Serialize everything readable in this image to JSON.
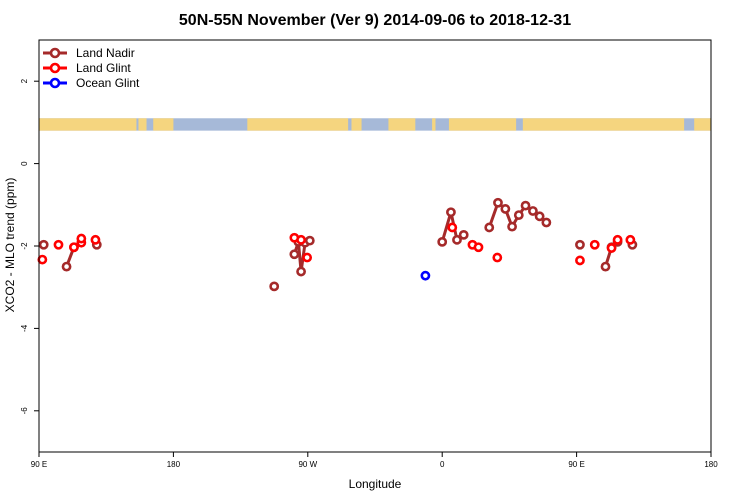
{
  "chart_data": {
    "type": "line",
    "title": "50N-55N November (Ver 9)   2014-09-06 to 2018-12-31",
    "xlabel": "Longitude",
    "ylabel": "XCO2 - MLO trend (ppm)",
    "x_axis_note": "longitude with Pacific-centered layout (90E → 180 → 90W → 0 → 90E → 180)",
    "xlim": [
      0,
      1
    ],
    "ylim": [
      -7,
      3
    ],
    "x_ticks": [
      {
        "pos": 0.0,
        "label": "90 E"
      },
      {
        "pos": 0.2,
        "label": "180"
      },
      {
        "pos": 0.4,
        "label": "90 W"
      },
      {
        "pos": 0.6,
        "label": "0"
      },
      {
        "pos": 0.8,
        "label": "90 E"
      },
      {
        "pos": 1.0,
        "label": "180"
      }
    ],
    "y_ticks": [
      {
        "value": 2,
        "label": "2"
      },
      {
        "value": 0,
        "label": "0"
      },
      {
        "value": -2,
        "label": "-2"
      },
      {
        "value": -4,
        "label": "-4"
      },
      {
        "value": -6,
        "label": "-6"
      }
    ],
    "grid": false,
    "legend_position": "top-left",
    "land_mask_band": {
      "y_top": 1.1,
      "y_bottom": 0.8,
      "land_color": "#f5d57f",
      "ocean_color": "#a6b9d8"
    },
    "series": [
      {
        "name": "Land Nadir",
        "color": "#a52a2a",
        "segments": [
          [
            [
              0.007,
              -1.97
            ]
          ],
          [
            [
              0.041,
              -2.5
            ],
            [
              0.052,
              -2.03
            ]
          ],
          [
            [
              0.086,
              -1.97
            ]
          ],
          [
            [
              0.35,
              -2.98
            ]
          ],
          [
            [
              0.38,
              -2.2
            ],
            [
              0.386,
              -1.9
            ],
            [
              0.39,
              -2.62
            ],
            [
              0.396,
              -1.92
            ],
            [
              0.403,
              -1.87
            ]
          ],
          [
            [
              0.6,
              -1.9
            ],
            [
              0.613,
              -1.18
            ],
            [
              0.622,
              -1.85
            ],
            [
              0.632,
              -1.73
            ]
          ],
          [
            [
              0.67,
              -1.55
            ],
            [
              0.683,
              -0.95
            ],
            [
              0.694,
              -1.1
            ],
            [
              0.704,
              -1.53
            ],
            [
              0.714,
              -1.25
            ],
            [
              0.724,
              -1.02
            ],
            [
              0.735,
              -1.15
            ],
            [
              0.745,
              -1.28
            ],
            [
              0.755,
              -1.43
            ]
          ],
          [
            [
              0.805,
              -1.97
            ]
          ],
          [
            [
              0.843,
              -2.5
            ],
            [
              0.852,
              -2.03
            ],
            [
              0.861,
              -1.9
            ]
          ],
          [
            [
              0.883,
              -1.97
            ]
          ]
        ]
      },
      {
        "name": "Land Glint",
        "color": "#ff0000",
        "segments": [
          [
            [
              0.005,
              -2.33
            ]
          ],
          [
            [
              0.029,
              -1.97
            ]
          ],
          [
            [
              0.052,
              -2.03
            ],
            [
              0.063,
              -1.92
            ],
            [
              0.063,
              -1.82
            ]
          ],
          [
            [
              0.084,
              -1.85
            ]
          ],
          [
            [
              0.38,
              -1.8
            ],
            [
              0.39,
              -1.85
            ]
          ],
          [
            [
              0.399,
              -2.28
            ]
          ],
          [
            [
              0.615,
              -1.55
            ]
          ],
          [
            [
              0.645,
              -1.97
            ],
            [
              0.654,
              -2.03
            ]
          ],
          [
            [
              0.682,
              -2.28
            ]
          ],
          [
            [
              0.805,
              -2.35
            ]
          ],
          [
            [
              0.827,
              -1.97
            ]
          ],
          [
            [
              0.852,
              -2.05
            ],
            [
              0.861,
              -1.85
            ]
          ],
          [
            [
              0.88,
              -1.85
            ]
          ]
        ]
      },
      {
        "name": "Ocean Glint",
        "color": "#0000ff",
        "segments": [
          [
            [
              0.575,
              -2.72
            ]
          ]
        ]
      }
    ]
  }
}
